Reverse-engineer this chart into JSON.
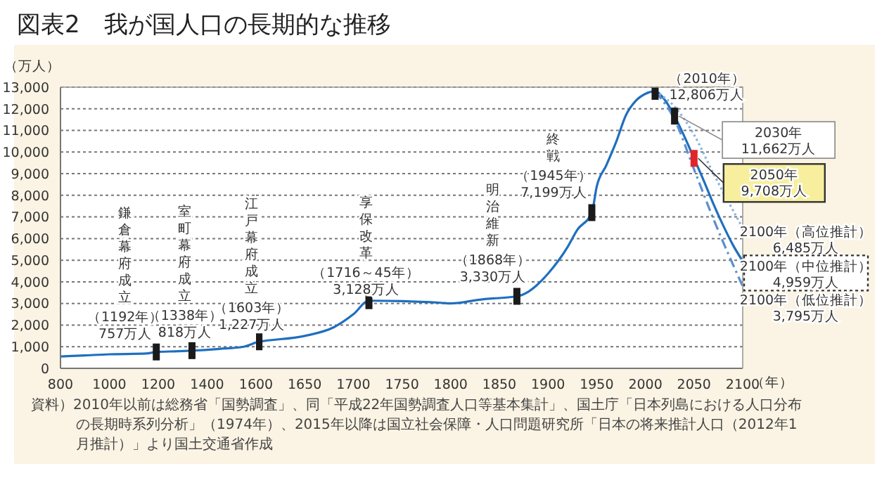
{
  "chart_data": [
    {
      "type": "line",
      "title": "図表2　我が国人口の長期的な推移",
      "ylabel": "（万人）",
      "xlim": [
        800,
        1600
      ],
      "xticks": [
        800,
        1000,
        1200,
        1400
      ],
      "ylim": [
        0,
        13000
      ],
      "yticks": [
        0,
        {
          "value": 1000,
          "label": "1,000"
        },
        {
          "value": 2000,
          "label": "2,000"
        },
        {
          "value": 3000,
          "label": "3,000"
        },
        {
          "value": 4000,
          "label": "4,000"
        },
        {
          "value": 5000,
          "label": "5,000"
        },
        {
          "value": 6000,
          "label": "6,000"
        },
        {
          "value": 7000,
          "label": "7,000"
        },
        {
          "value": 8000,
          "label": "8,000"
        },
        {
          "value": 9000,
          "label": "9,000"
        },
        {
          "value": 10000,
          "label": "10,000"
        },
        {
          "value": 11000,
          "label": "11,000"
        },
        {
          "value": 12000,
          "label": "12,000"
        },
        {
          "value": 13000,
          "label": "13,000"
        }
      ],
      "grid": "y",
      "series": [
        {
          "color": "#1f6fbf",
          "line_style": "solid",
          "x": [
            800,
            900,
            1000,
            1150,
            1192,
            1280,
            1338,
            1450,
            1550,
            1600
          ],
          "values": [
            551,
            600,
            650,
            684,
            757,
            790,
            818,
            900,
            1000,
            1200
          ]
        },
        {
          "type": "scatter",
          "color": "#1a1a1a",
          "marker": "square",
          "x": [
            1192,
            1338
          ],
          "values": [
            757,
            818
          ]
        }
      ],
      "annotations": [
        "鎌倉幕府成立",
        {
          "text": "（1192年）\n757万人",
          "x": 1192,
          "y": 757
        },
        "室町幕府成立",
        {
          "text": "（1338年）\n818万人",
          "x": 1338,
          "y": 818
        }
      ]
    },
    {
      "type": "line",
      "xlabel": "（年）",
      "tick_labels": "x",
      "xlim": [
        1600,
        2100
      ],
      "xticks": [
        1600,
        1650,
        1700,
        1750,
        1800,
        1850,
        1900,
        1950,
        2000,
        2050,
        2100
      ],
      "ylim": [
        0,
        13000
      ],
      "yticks": [
        0,
        1000,
        2000,
        3000,
        4000,
        5000,
        6000,
        7000,
        8000,
        9000,
        10000,
        11000,
        12000,
        13000
      ],
      "grid": "y",
      "series": [
        {
          "color": "#1f6fbf",
          "line_style": "solid",
          "x": [
            1600,
            1603,
            1650,
            1680,
            1700,
            1716,
            1750,
            1790,
            1800,
            1834,
            1850,
            1868,
            1880,
            1900,
            1920,
            1930,
            1945,
            1950,
            1960,
            1970,
            1980,
            1990,
            2000,
            2010,
            2020,
            2030,
            2040,
            2050,
            2060,
            2070,
            2080,
            2090,
            2100
          ],
          "values": [
            1200,
            1227,
            1500,
            1900,
            2500,
            3128,
            3110,
            3030,
            3000,
            3200,
            3250,
            3330,
            3550,
            4380,
            5600,
            6400,
            7199,
            8400,
            9400,
            10470,
            11700,
            12360,
            12690,
            12806,
            12410,
            11662,
            10728,
            9708,
            8674,
            7590,
            6600,
            5700,
            4959
          ]
        },
        {
          "type": "line",
          "color": "#8ab4e0",
          "line_style": "dotted",
          "x": [
            2010,
            2030,
            2050,
            2070,
            2100
          ],
          "values": [
            12806,
            12100,
            10800,
            9000,
            6485
          ]
        },
        {
          "type": "line",
          "color": "#5b8fd0",
          "line_style": "dashed",
          "x": [
            2010,
            2030,
            2050,
            2070,
            2100
          ],
          "values": [
            12806,
            11500,
            9200,
            6900,
            3795
          ]
        },
        {
          "type": "scatter",
          "color": "#1a1a1a",
          "marker": "square",
          "x": [
            1603,
            1716,
            1868,
            1945,
            2010,
            2030
          ],
          "values": [
            1227,
            3128,
            3330,
            7199,
            12806,
            11662
          ]
        },
        {
          "type": "scatter",
          "color": "#e0262a",
          "marker": "square",
          "x": [
            2050
          ],
          "values": [
            9708
          ]
        }
      ],
      "annotations": [
        "江戸幕府成立",
        {
          "text": "（1603年）\n1,227万人",
          "x": 1603,
          "y": 1227
        },
        "享保改革",
        {
          "text": "（1716～45年）\n3,128万人",
          "x": 1716,
          "y": 3128
        },
        "明治維新",
        {
          "text": "（1868年）\n3,330万人",
          "x": 1868,
          "y": 3330
        },
        "終戦",
        {
          "text": "（1945年）\n7,199万人",
          "x": 1945,
          "y": 7199
        },
        {
          "text": "（2010年）\n12,806万人",
          "x": 2010,
          "y": 12806
        },
        "2030年\n11,662万人",
        "2050年\n9,708万人",
        {
          "text": "2100年（高位推計）\n6,485万人",
          "x": 2100,
          "y": 6485
        },
        {
          "text": "2100年（中位推計）\n4,959万人",
          "x": 2100,
          "y": 4959
        },
        {
          "text": "2100年（低位推計）\n3,795万人",
          "x": 2100,
          "y": 3795
        },
        "資料）2010年以前は総務省「国勢調査」、同「平成22年国勢調査人口等基本集計」、国土庁「日本列島における人口分布の長期時系列分析」（1974年）、2015年以降は国立社会保障・人口問題研究所「日本の将来推計人口（2012年1月推計）」より国土交通省作成"
      ]
    }
  ]
}
